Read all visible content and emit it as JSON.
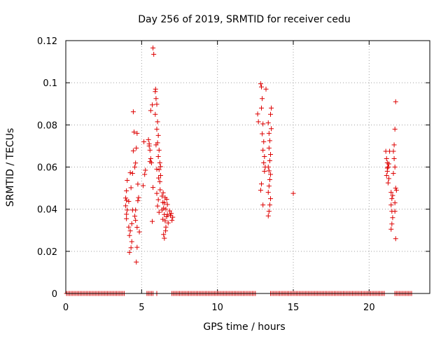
{
  "chart_data": {
    "type": "scatter",
    "title": "Day 256 of 2019, SRMTID for receiver cedu",
    "xlabel": "GPS time / hours",
    "ylabel": "SRMTID / TECUs",
    "xlim": [
      0,
      24
    ],
    "ylim": [
      0,
      0.12
    ],
    "x_ticks": [
      0,
      5,
      10,
      15,
      20
    ],
    "x_tick_labels": [
      "0",
      "5",
      "10",
      "15",
      "20"
    ],
    "y_ticks": [
      0,
      0.02,
      0.04,
      0.06,
      0.08,
      0.1,
      0.12
    ],
    "y_tick_labels": [
      "0",
      "0.02",
      "0.04",
      "0.06",
      "0.08",
      "0.1",
      "0.12"
    ],
    "grid": true,
    "marker": "+",
    "colors": {
      "series": "#dd0000",
      "grid": "#a0a0a0",
      "axis": "#000000"
    },
    "zero_runs": [
      [
        0.05,
        3.9
      ],
      [
        5.35,
        5.75
      ],
      [
        6.0,
        6.05
      ],
      [
        7.0,
        12.5
      ],
      [
        13.5,
        21.0
      ],
      [
        21.7,
        22.8
      ]
    ],
    "zero_step": 0.1,
    "clusters": [
      {
        "x": [
          3.9,
          4.05
        ],
        "points": [
          [
            4.0,
            0.0487
          ],
          [
            4.0,
            0.0442
          ],
          [
            3.95,
            0.0416
          ],
          [
            4.05,
            0.0396
          ],
          [
            4.0,
            0.0376
          ],
          [
            4.0,
            0.0355
          ],
          [
            4.05,
            0.0537
          ],
          [
            3.95,
            0.0453
          ]
        ]
      },
      {
        "x": [
          4.1,
          4.5
        ],
        "points": [
          [
            4.15,
            0.0315
          ],
          [
            4.2,
            0.0275
          ],
          [
            4.25,
            0.0297
          ],
          [
            4.3,
            0.0217
          ],
          [
            4.2,
            0.0195
          ],
          [
            4.35,
            0.0246
          ],
          [
            4.4,
            0.057
          ],
          [
            4.45,
            0.0677
          ],
          [
            4.5,
            0.0766
          ],
          [
            4.45,
            0.0862
          ],
          [
            4.25,
            0.0573
          ],
          [
            4.35,
            0.0331
          ],
          [
            4.15,
            0.0437
          ],
          [
            4.3,
            0.0502
          ],
          [
            4.4,
            0.0396
          ]
        ]
      },
      {
        "x": [
          4.5,
          4.9
        ],
        "points": [
          [
            4.55,
            0.06
          ],
          [
            4.6,
            0.0619
          ],
          [
            4.65,
            0.069
          ],
          [
            4.7,
            0.076
          ],
          [
            4.6,
            0.0396
          ],
          [
            4.7,
            0.0219
          ],
          [
            4.65,
            0.0149
          ],
          [
            4.75,
            0.0519
          ],
          [
            4.55,
            0.0367
          ],
          [
            4.85,
            0.0292
          ],
          [
            4.6,
            0.0347
          ],
          [
            4.8,
            0.0455
          ],
          [
            4.7,
            0.0314
          ],
          [
            4.75,
            0.044
          ]
        ]
      },
      {
        "x": [
          5.0,
          5.3
        ],
        "points": [
          [
            5.1,
            0.0512
          ],
          [
            5.2,
            0.0565
          ],
          [
            5.15,
            0.072
          ],
          [
            5.25,
            0.0585
          ]
        ]
      },
      {
        "x": [
          5.4,
          5.85
        ],
        "points": [
          [
            5.45,
            0.073
          ],
          [
            5.5,
            0.07
          ],
          [
            5.55,
            0.068
          ],
          [
            5.6,
            0.064
          ],
          [
            5.65,
            0.062
          ],
          [
            5.7,
            0.0895
          ],
          [
            5.6,
            0.0868
          ],
          [
            5.75,
            0.0503
          ],
          [
            5.7,
            0.0342
          ],
          [
            5.8,
            0.1135
          ],
          [
            5.75,
            0.1165
          ],
          [
            5.55,
            0.0626
          ],
          [
            5.5,
            0.071
          ]
        ]
      },
      {
        "x": [
          5.85,
          6.3
        ],
        "points": [
          [
            5.9,
            0.0958
          ],
          [
            5.95,
            0.0925
          ],
          [
            6.0,
            0.0898
          ],
          [
            5.9,
            0.085
          ],
          [
            6.05,
            0.0815
          ],
          [
            6.0,
            0.078
          ],
          [
            6.1,
            0.075
          ],
          [
            6.05,
            0.0715
          ],
          [
            6.15,
            0.068
          ],
          [
            6.1,
            0.065
          ],
          [
            6.2,
            0.062
          ],
          [
            6.15,
            0.0588
          ],
          [
            6.25,
            0.056
          ],
          [
            6.2,
            0.053
          ],
          [
            6.0,
            0.0475
          ],
          [
            6.1,
            0.0445
          ],
          [
            6.05,
            0.0415
          ],
          [
            6.15,
            0.0385
          ],
          [
            6.0,
            0.059
          ],
          [
            5.95,
            0.0705
          ],
          [
            6.25,
            0.0602
          ],
          [
            5.92,
            0.097
          ],
          [
            6.12,
            0.0548
          ],
          [
            6.22,
            0.0492
          ]
        ]
      },
      {
        "x": [
          6.3,
          6.8
        ],
        "points": [
          [
            6.35,
            0.0462
          ],
          [
            6.4,
            0.0432
          ],
          [
            6.45,
            0.0405
          ],
          [
            6.5,
            0.0375
          ],
          [
            6.55,
            0.0345
          ],
          [
            6.6,
            0.0315
          ],
          [
            6.45,
            0.028
          ],
          [
            6.5,
            0.0262
          ],
          [
            6.35,
            0.0396
          ],
          [
            6.65,
            0.0447
          ],
          [
            6.7,
            0.0422
          ],
          [
            6.4,
            0.0352
          ],
          [
            6.55,
            0.0455
          ],
          [
            6.6,
            0.04
          ],
          [
            6.7,
            0.0375
          ],
          [
            6.75,
            0.0335
          ],
          [
            6.5,
            0.043
          ],
          [
            6.65,
            0.0364
          ],
          [
            6.42,
            0.0478
          ],
          [
            6.58,
            0.0297
          ]
        ]
      },
      {
        "x": [
          6.8,
          7.1
        ],
        "points": [
          [
            6.85,
            0.0392
          ],
          [
            6.9,
            0.037
          ],
          [
            7.0,
            0.0347
          ],
          [
            6.95,
            0.038
          ],
          [
            7.05,
            0.0362
          ]
        ]
      },
      {
        "x": [
          12.6,
          12.8
        ],
        "points": [
          [
            12.65,
            0.0852
          ],
          [
            12.7,
            0.0815
          ]
        ]
      },
      {
        "x": [
          12.8,
          13.2
        ],
        "points": [
          [
            12.85,
            0.0995
          ],
          [
            12.9,
            0.098
          ],
          [
            12.95,
            0.0925
          ],
          [
            12.9,
            0.088
          ],
          [
            13.0,
            0.0805
          ],
          [
            12.95,
            0.0758
          ],
          [
            13.05,
            0.072
          ],
          [
            13.0,
            0.068
          ],
          [
            13.1,
            0.065
          ],
          [
            13.05,
            0.062
          ],
          [
            13.15,
            0.06
          ],
          [
            13.1,
            0.058
          ],
          [
            12.9,
            0.052
          ],
          [
            12.85,
            0.049
          ],
          [
            13.0,
            0.042
          ],
          [
            13.2,
            0.097
          ]
        ]
      },
      {
        "x": [
          13.3,
          13.6
        ],
        "points": [
          [
            13.35,
            0.081
          ],
          [
            13.4,
            0.076
          ],
          [
            13.45,
            0.0725
          ],
          [
            13.4,
            0.069
          ],
          [
            13.5,
            0.066
          ],
          [
            13.45,
            0.063
          ],
          [
            13.35,
            0.06
          ],
          [
            13.5,
            0.0565
          ],
          [
            13.45,
            0.054
          ],
          [
            13.4,
            0.051
          ],
          [
            13.35,
            0.048
          ],
          [
            13.5,
            0.045
          ],
          [
            13.45,
            0.042
          ],
          [
            13.4,
            0.039
          ],
          [
            13.35,
            0.0368
          ],
          [
            13.55,
            0.088
          ],
          [
            13.5,
            0.085
          ],
          [
            13.55,
            0.0782
          ],
          [
            13.4,
            0.0582
          ]
        ]
      },
      {
        "x": [
          14.8,
          15.2
        ],
        "points": [
          [
            15.0,
            0.0475
          ]
        ]
      },
      {
        "x": [
          21.0,
          21.4
        ],
        "points": [
          [
            21.1,
            0.0675
          ],
          [
            21.15,
            0.064
          ],
          [
            21.2,
            0.062
          ],
          [
            21.25,
            0.06
          ],
          [
            21.2,
            0.058
          ],
          [
            21.15,
            0.056
          ],
          [
            21.3,
            0.0545
          ],
          [
            21.25,
            0.0525
          ],
          [
            21.35,
            0.0675
          ],
          [
            21.3,
            0.0615
          ],
          [
            21.2,
            0.0595
          ]
        ]
      },
      {
        "x": [
          21.4,
          21.9
        ],
        "points": [
          [
            21.45,
            0.048
          ],
          [
            21.5,
            0.045
          ],
          [
            21.45,
            0.042
          ],
          [
            21.5,
            0.039
          ],
          [
            21.55,
            0.036
          ],
          [
            21.5,
            0.033
          ],
          [
            21.45,
            0.0305
          ],
          [
            21.6,
            0.0675
          ],
          [
            21.65,
            0.0705
          ],
          [
            21.7,
            0.078
          ],
          [
            21.75,
            0.091
          ],
          [
            21.7,
            0.06
          ],
          [
            21.65,
            0.064
          ],
          [
            21.75,
            0.05
          ],
          [
            21.7,
            0.043
          ],
          [
            21.75,
            0.026
          ],
          [
            21.6,
            0.057
          ],
          [
            21.55,
            0.0465
          ],
          [
            21.8,
            0.049
          ],
          [
            21.7,
            0.039
          ]
        ]
      }
    ]
  }
}
